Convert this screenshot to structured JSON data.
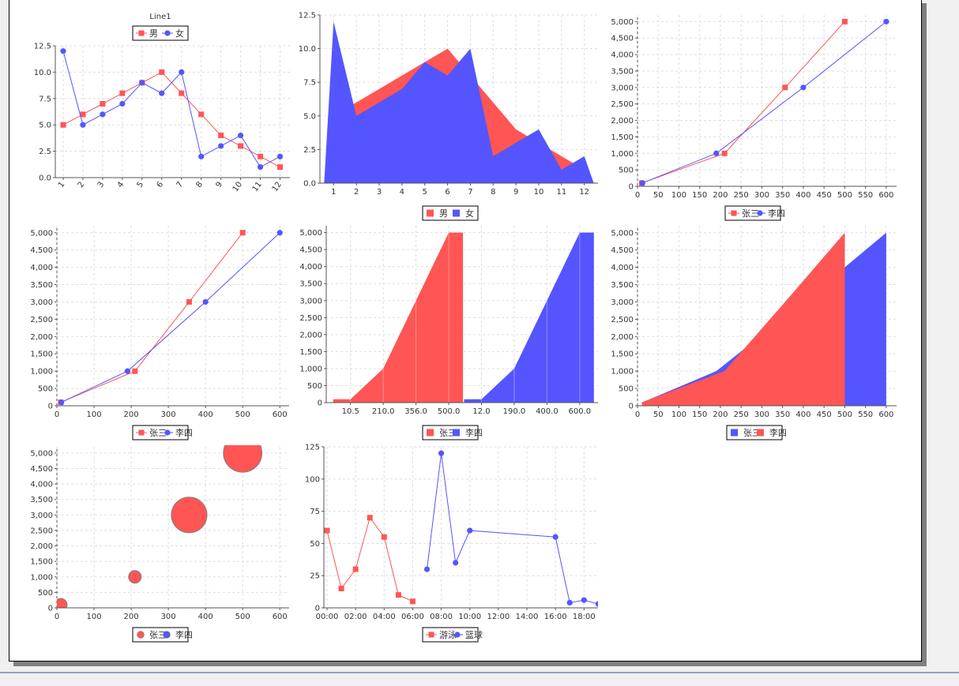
{
  "colors": {
    "red": "#ff5555",
    "blue": "#5555ff",
    "grid": "#dddddd"
  },
  "charts": [
    {
      "type": "line",
      "title": "Line1",
      "x": [
        1,
        2,
        3,
        4,
        5,
        6,
        7,
        8,
        9,
        10,
        11,
        12
      ],
      "ylim": [
        0,
        12.5
      ],
      "yticks": [
        "0.0",
        "2.5",
        "5.0",
        "7.5",
        "10.0",
        "12.5"
      ],
      "xtick_labels": [
        "1",
        "2",
        "3",
        "4",
        "5",
        "6",
        "7",
        "8",
        "9",
        "10",
        "11",
        "12"
      ],
      "legend": {
        "position": "top",
        "entries": [
          "男",
          "女"
        ]
      },
      "series": [
        {
          "name": "男",
          "color": "red",
          "marker": "square",
          "values": [
            5,
            6,
            7,
            8,
            9,
            10,
            8,
            6,
            4,
            3,
            2,
            1
          ]
        },
        {
          "name": "女",
          "color": "blue",
          "marker": "circle",
          "values": [
            12,
            5,
            6,
            7,
            9,
            8,
            10,
            2,
            3,
            4,
            1,
            2
          ]
        }
      ]
    },
    {
      "type": "area",
      "x": [
        1,
        2,
        3,
        4,
        5,
        6,
        7,
        8,
        9,
        10,
        11,
        12
      ],
      "ylim": [
        0,
        12.5
      ],
      "yticks": [
        "0.0",
        "2.5",
        "5.0",
        "7.5",
        "10.0",
        "12.5"
      ],
      "xtick_labels": [
        "1",
        "2",
        "3",
        "4",
        "5",
        "6",
        "7",
        "8",
        "9",
        "10",
        "11",
        "12"
      ],
      "legend": {
        "position": "bottom",
        "entries": [
          "男",
          "女"
        ]
      },
      "series": [
        {
          "name": "男",
          "color": "red",
          "values": [
            5,
            6,
            7,
            8,
            9,
            10,
            8,
            6,
            4,
            3,
            2,
            1
          ]
        },
        {
          "name": "女",
          "color": "blue",
          "values": [
            12,
            5,
            6,
            7,
            9,
            8,
            10,
            2,
            3,
            4,
            1,
            2
          ]
        }
      ]
    },
    {
      "type": "line",
      "xlim": [
        0,
        625
      ],
      "ylim": [
        0,
        5200
      ],
      "xticks": [
        "0",
        "50",
        "100",
        "150",
        "200",
        "250",
        "300",
        "350",
        "400",
        "450",
        "500",
        "550",
        "600"
      ],
      "yticks": [
        "0",
        "500",
        "1,000",
        "1,500",
        "2,000",
        "2,500",
        "3,000",
        "3,500",
        "4,000",
        "4,500",
        "5,000"
      ],
      "legend": {
        "position": "bottom",
        "entries": [
          "张三",
          "李四"
        ]
      },
      "series": [
        {
          "name": "张三",
          "color": "red",
          "marker": "square",
          "points": [
            [
              10.5,
              100
            ],
            [
              210,
              1000
            ],
            [
              356,
              3000
            ],
            [
              500,
              5000
            ]
          ]
        },
        {
          "name": "李四",
          "color": "blue",
          "marker": "circle",
          "points": [
            [
              12,
              100
            ],
            [
              190,
              1000
            ],
            [
              400,
              3000
            ],
            [
              600,
              5000
            ]
          ]
        }
      ]
    },
    {
      "type": "line",
      "xlim": [
        0,
        625
      ],
      "ylim": [
        0,
        5200
      ],
      "xticks": [
        "0",
        "100",
        "200",
        "300",
        "400",
        "500",
        "600"
      ],
      "yticks": [
        "0",
        "500",
        "1,000",
        "1,500",
        "2,000",
        "2,500",
        "3,000",
        "3,500",
        "4,000",
        "4,500",
        "5,000"
      ],
      "legend": {
        "position": "bottom",
        "entries": [
          "张三",
          "李四"
        ]
      },
      "series": [
        {
          "name": "张三",
          "color": "red",
          "marker": "square",
          "points": [
            [
              10.5,
              100
            ],
            [
              210,
              1000
            ],
            [
              356,
              3000
            ],
            [
              500,
              5000
            ]
          ]
        },
        {
          "name": "李四",
          "color": "blue",
          "marker": "circle",
          "points": [
            [
              12,
              100
            ],
            [
              190,
              1000
            ],
            [
              400,
              3000
            ],
            [
              600,
              5000
            ]
          ]
        }
      ]
    },
    {
      "type": "area",
      "ylim": [
        0,
        5200
      ],
      "yticks": [
        "0",
        "500",
        "1,000",
        "1,500",
        "2,000",
        "2,500",
        "3,000",
        "3,500",
        "4,000",
        "4,500",
        "5,000"
      ],
      "xtick_labels": [
        "10.5",
        "210.0",
        "356.0",
        "500.0",
        "12.0",
        "190.0",
        "400.0",
        "600.0"
      ],
      "legend": {
        "position": "bottom",
        "entries": [
          "张三",
          "李四"
        ]
      },
      "series": [
        {
          "name": "张三",
          "color": "red",
          "points": [
            [
              "10.5",
              100
            ],
            [
              "210.0",
              1000
            ],
            [
              "356.0",
              3000
            ],
            [
              "500.0",
              5000
            ]
          ]
        },
        {
          "name": "李四",
          "color": "blue",
          "points": [
            [
              "12.0",
              100
            ],
            [
              "190.0",
              1000
            ],
            [
              "400.0",
              3000
            ],
            [
              "600.0",
              5000
            ]
          ]
        }
      ]
    },
    {
      "type": "area",
      "xlim": [
        0,
        625
      ],
      "ylim": [
        0,
        5200
      ],
      "xticks": [
        "0",
        "50",
        "100",
        "150",
        "200",
        "250",
        "300",
        "350",
        "400",
        "450",
        "500",
        "550",
        "600"
      ],
      "yticks": [
        "0",
        "500",
        "1,000",
        "1,500",
        "2,000",
        "2,500",
        "3,000",
        "3,500",
        "4,000",
        "4,500",
        "5,000"
      ],
      "legend": {
        "position": "bottom",
        "entries": [
          "张三",
          "李四"
        ]
      },
      "series": [
        {
          "name": "李四",
          "color": "blue",
          "points": [
            [
              12,
              100
            ],
            [
              190,
              1000
            ],
            [
              400,
              3000
            ],
            [
              600,
              5000
            ]
          ]
        },
        {
          "name": "张三",
          "color": "red",
          "points": [
            [
              10.5,
              100
            ],
            [
              210,
              1000
            ],
            [
              356,
              3000
            ],
            [
              500,
              5000
            ]
          ]
        }
      ]
    },
    {
      "type": "bubble",
      "xlim": [
        0,
        625
      ],
      "ylim": [
        0,
        5200
      ],
      "xticks": [
        "0",
        "100",
        "200",
        "300",
        "400",
        "500",
        "600"
      ],
      "yticks": [
        "0",
        "500",
        "1,000",
        "1,500",
        "2,000",
        "2,500",
        "3,000",
        "3,500",
        "4,000",
        "4,500",
        "5,000"
      ],
      "legend": {
        "position": "bottom",
        "entries": [
          "张三",
          "李四"
        ]
      },
      "series": [
        {
          "name": "张三",
          "color": "red",
          "points": [
            [
              10.5,
              100,
              22
            ],
            [
              210,
              1000,
              80
            ],
            [
              356,
              3000,
              250
            ],
            [
              500,
              5000,
              270
            ]
          ]
        },
        {
          "name": "李四",
          "color": "blue",
          "points": []
        }
      ]
    },
    {
      "type": "line",
      "xlim": [
        0,
        19.2
      ],
      "ylim": [
        0,
        125
      ],
      "xticks": [
        "00:00",
        "02:00",
        "04:00",
        "06:00",
        "08:00",
        "10:00",
        "12:00",
        "14:00",
        "16:00",
        "18:00"
      ],
      "yticks": [
        "0",
        "25",
        "50",
        "75",
        "100",
        "125"
      ],
      "legend": {
        "position": "bottom",
        "entries": [
          "游泳",
          "篮球"
        ]
      },
      "series": [
        {
          "name": "游泳",
          "color": "red",
          "marker": "square",
          "points": [
            [
              "00:00",
              60
            ],
            [
              "01:00",
              15
            ],
            [
              "02:00",
              30
            ],
            [
              "03:00",
              70
            ],
            [
              "04:00",
              55
            ],
            [
              "05:00",
              10
            ],
            [
              "06:00",
              5
            ]
          ]
        },
        {
          "name": "篮球",
          "color": "blue",
          "marker": "circle",
          "points": [
            [
              "07:00",
              30
            ],
            [
              "08:00",
              120
            ],
            [
              "09:00",
              35
            ],
            [
              "10:00",
              60
            ],
            [
              "16:00",
              55
            ],
            [
              "17:00",
              4
            ],
            [
              "18:00",
              6
            ],
            [
              "19:00",
              3
            ]
          ]
        }
      ]
    }
  ]
}
